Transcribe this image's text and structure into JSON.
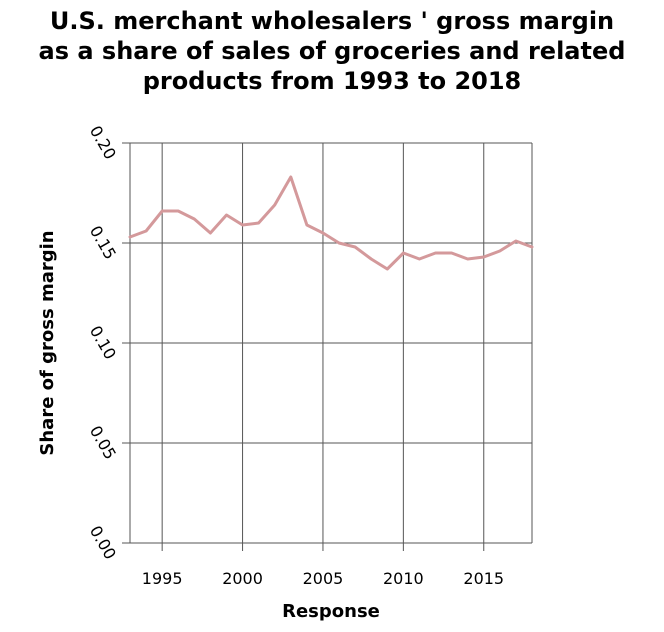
{
  "chart_data": {
    "type": "line",
    "title_lines": [
      "U.S. merchant wholesalers ' gross margin",
      "as a share of sales of groceries and related",
      "products from 1993 to 2018"
    ],
    "xlabel": "Response",
    "ylabel": "Share of gross margin",
    "xlim": [
      1993,
      2018
    ],
    "ylim": [
      0.0,
      0.2
    ],
    "x_ticks": [
      1995,
      2000,
      2005,
      2010,
      2015
    ],
    "x_tick_labels": [
      "1995",
      "2000",
      "2005",
      "2010",
      "2015"
    ],
    "y_ticks": [
      0.0,
      0.05,
      0.1,
      0.15,
      0.2
    ],
    "y_tick_labels": [
      "0.00",
      "0.05",
      "0.10",
      "0.15",
      "0.20"
    ],
    "grid": true,
    "line_color": "#d4999b",
    "series": [
      {
        "x": [
          1993,
          1994,
          1995,
          1996,
          1997,
          1998,
          1999,
          2000,
          2001,
          2002,
          2003,
          2004,
          2005,
          2006,
          2007,
          2008,
          2009,
          2010,
          2011,
          2012,
          2013,
          2014,
          2015,
          2016,
          2017,
          2018
        ],
        "values": [
          0.153,
          0.156,
          0.166,
          0.166,
          0.162,
          0.155,
          0.164,
          0.159,
          0.16,
          0.169,
          0.183,
          0.159,
          0.155,
          0.15,
          0.148,
          0.142,
          0.137,
          0.145,
          0.142,
          0.145,
          0.145,
          0.142,
          0.143,
          0.146,
          0.151,
          0.148
        ]
      }
    ]
  }
}
